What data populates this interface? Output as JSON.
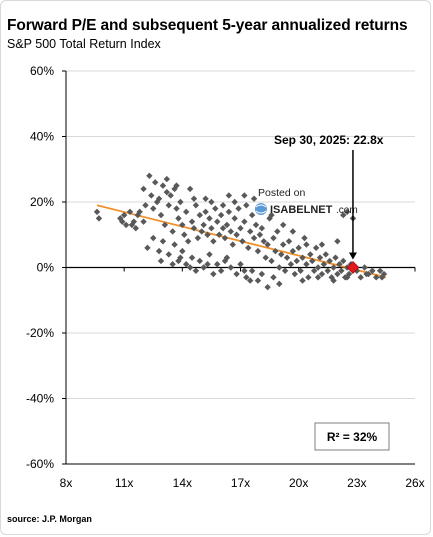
{
  "title": "Forward P/E and subsequent 5-year annualized returns",
  "subtitle": "S&P 500 Total Return Index",
  "source": "source: J.P. Morgan",
  "watermark": {
    "line1": "Posted on",
    "line2": "ISABELNET",
    "suffix": ".com"
  },
  "colors": {
    "points": "#595959",
    "trend": "#f0902a",
    "highlight": "#e01b1b",
    "grid": "#d9d9d9",
    "axis": "#000000"
  },
  "chart_data": {
    "type": "scatter",
    "title": "Forward P/E and subsequent 5-year annualized returns",
    "subtitle": "S&P 500 Total Return Index",
    "xlabel": "",
    "ylabel": "",
    "xlim": [
      8,
      26
    ],
    "ylim": [
      -60,
      60
    ],
    "x_ticks": [
      8,
      11,
      14,
      17,
      20,
      23,
      26
    ],
    "x_tick_labels": [
      "8x",
      "11x",
      "14x",
      "17x",
      "20x",
      "23x",
      "26x"
    ],
    "y_ticks": [
      60,
      40,
      20,
      0,
      -20,
      -40,
      -60
    ],
    "y_tick_labels": [
      "60%",
      "40%",
      "20%",
      "0%",
      "-20%",
      "-40%",
      "-60%"
    ],
    "grid": "horizontal",
    "trendline": {
      "x": [
        9.6,
        24.5
      ],
      "y": [
        19,
        -3
      ]
    },
    "highlight": {
      "x": 22.8,
      "y": 0,
      "label": "Sep 30, 2025:  22.8x"
    },
    "r_squared_label": "R² = 32%",
    "points": [
      [
        9.6,
        17
      ],
      [
        9.7,
        15
      ],
      [
        10.8,
        15
      ],
      [
        11.0,
        16
      ],
      [
        11.1,
        13
      ],
      [
        11.3,
        17
      ],
      [
        11.5,
        14
      ],
      [
        11.6,
        12
      ],
      [
        11.8,
        17
      ],
      [
        12.0,
        24
      ],
      [
        12.1,
        19
      ],
      [
        12.3,
        28
      ],
      [
        12.4,
        22
      ],
      [
        12.5,
        18
      ],
      [
        12.6,
        26
      ],
      [
        12.8,
        21
      ],
      [
        12.9,
        16
      ],
      [
        13.0,
        25
      ],
      [
        13.1,
        13
      ],
      [
        13.2,
        27
      ],
      [
        13.3,
        19
      ],
      [
        13.4,
        22
      ],
      [
        13.5,
        11
      ],
      [
        13.6,
        24
      ],
      [
        13.7,
        18
      ],
      [
        13.8,
        15
      ],
      [
        13.9,
        20
      ],
      [
        14.0,
        13
      ],
      [
        14.1,
        10
      ],
      [
        14.2,
        17
      ],
      [
        14.3,
        8
      ],
      [
        14.4,
        24
      ],
      [
        14.5,
        14
      ],
      [
        14.6,
        12
      ],
      [
        14.7,
        19
      ],
      [
        14.8,
        9
      ],
      [
        14.9,
        16
      ],
      [
        15.0,
        11
      ],
      [
        15.1,
        13
      ],
      [
        15.2,
        21
      ],
      [
        15.3,
        10
      ],
      [
        15.4,
        15
      ],
      [
        15.5,
        12
      ],
      [
        15.6,
        8
      ],
      [
        15.7,
        18
      ],
      [
        15.8,
        14
      ],
      [
        15.9,
        10
      ],
      [
        16.0,
        16
      ],
      [
        16.1,
        12
      ],
      [
        16.2,
        9
      ],
      [
        16.3,
        13
      ],
      [
        16.4,
        17
      ],
      [
        16.5,
        11
      ],
      [
        16.6,
        7
      ],
      [
        16.7,
        15
      ],
      [
        16.8,
        10
      ],
      [
        16.9,
        18
      ],
      [
        17.0,
        12
      ],
      [
        17.1,
        8
      ],
      [
        17.2,
        14
      ],
      [
        17.3,
        19
      ],
      [
        17.4,
        6
      ],
      [
        17.5,
        11
      ],
      [
        17.6,
        16
      ],
      [
        17.7,
        9
      ],
      [
        17.8,
        13
      ],
      [
        17.9,
        5
      ],
      [
        18.0,
        10
      ],
      [
        18.1,
        12
      ],
      [
        18.2,
        8
      ],
      [
        18.3,
        3
      ],
      [
        18.4,
        7
      ],
      [
        18.5,
        15
      ],
      [
        18.6,
        2
      ],
      [
        18.7,
        9
      ],
      [
        18.8,
        5
      ],
      [
        18.9,
        11
      ],
      [
        19.0,
        0
      ],
      [
        19.1,
        4
      ],
      [
        19.2,
        7
      ],
      [
        19.3,
        -1
      ],
      [
        19.4,
        3
      ],
      [
        19.5,
        8
      ],
      [
        19.6,
        1
      ],
      [
        19.7,
        5
      ],
      [
        19.8,
        -2
      ],
      [
        19.9,
        2
      ],
      [
        20.0,
        6
      ],
      [
        20.1,
        -1
      ],
      [
        20.2,
        3
      ],
      [
        20.3,
        9
      ],
      [
        20.4,
        1
      ],
      [
        20.5,
        -3
      ],
      [
        20.6,
        4
      ],
      [
        20.7,
        2
      ],
      [
        20.8,
        -1
      ],
      [
        20.9,
        6
      ],
      [
        21.0,
        0
      ],
      [
        21.1,
        3
      ],
      [
        21.2,
        -2
      ],
      [
        21.3,
        1
      ],
      [
        21.4,
        4
      ],
      [
        21.5,
        -1
      ],
      [
        21.6,
        2
      ],
      [
        21.7,
        -3
      ],
      [
        21.8,
        0
      ],
      [
        21.9,
        3
      ],
      [
        22.0,
        -2
      ],
      [
        22.1,
        1
      ],
      [
        22.2,
        -1
      ],
      [
        22.3,
        2
      ],
      [
        22.4,
        -3
      ],
      [
        22.5,
        0
      ],
      [
        22.6,
        -2
      ],
      [
        22.7,
        1
      ],
      [
        23.0,
        -1
      ],
      [
        23.2,
        -3
      ],
      [
        23.4,
        0
      ],
      [
        23.6,
        -2
      ],
      [
        23.8,
        -1
      ],
      [
        24.0,
        -3
      ],
      [
        24.2,
        -1
      ],
      [
        24.4,
        -2
      ],
      [
        12.2,
        6
      ],
      [
        12.5,
        9
      ],
      [
        12.8,
        5
      ],
      [
        13.0,
        8
      ],
      [
        13.3,
        4
      ],
      [
        13.6,
        7
      ],
      [
        13.8,
        2
      ],
      [
        14.0,
        5
      ],
      [
        14.2,
        1
      ],
      [
        14.5,
        3
      ],
      [
        14.7,
        -1
      ],
      [
        14.9,
        2
      ],
      [
        15.1,
        0
      ],
      [
        15.4,
        4
      ],
      [
        15.6,
        -2
      ],
      [
        15.8,
        1
      ],
      [
        16.0,
        -1
      ],
      [
        16.3,
        3
      ],
      [
        16.5,
        0
      ],
      [
        16.8,
        -2
      ],
      [
        17.0,
        1
      ],
      [
        17.3,
        -3
      ],
      [
        17.6,
        -1
      ],
      [
        17.9,
        -4
      ],
      [
        18.1,
        -2
      ],
      [
        18.4,
        -6
      ],
      [
        18.7,
        -3
      ],
      [
        19.0,
        -5
      ],
      [
        17.5,
        -4
      ],
      [
        17.2,
        -1
      ],
      [
        16.2,
        2
      ],
      [
        15.3,
        1
      ],
      [
        14.4,
        0
      ],
      [
        13.9,
        3
      ],
      [
        13.5,
        1
      ],
      [
        12.9,
        2
      ],
      [
        20.2,
        -4
      ],
      [
        21.0,
        -3
      ],
      [
        21.8,
        -4
      ],
      [
        22.5,
        -3
      ],
      [
        23.5,
        -2
      ],
      [
        24.3,
        -3
      ],
      [
        15.2,
        17
      ],
      [
        15.5,
        20
      ],
      [
        16.1,
        19
      ],
      [
        16.4,
        22
      ],
      [
        16.7,
        20
      ],
      [
        17.2,
        22
      ],
      [
        17.7,
        21
      ],
      [
        18.2,
        18
      ],
      [
        18.6,
        16
      ],
      [
        19.2,
        13
      ],
      [
        19.7,
        11
      ],
      [
        20.4,
        7
      ],
      [
        21.2,
        7
      ],
      [
        22.0,
        8
      ],
      [
        22.5,
        17
      ],
      [
        22.8,
        15
      ],
      [
        22.3,
        16
      ],
      [
        13.2,
        23
      ],
      [
        13.7,
        25
      ],
      [
        14.6,
        21
      ],
      [
        12.7,
        20
      ],
      [
        12.0,
        14
      ],
      [
        11.7,
        16
      ],
      [
        11.4,
        13
      ],
      [
        10.9,
        14
      ]
    ]
  }
}
